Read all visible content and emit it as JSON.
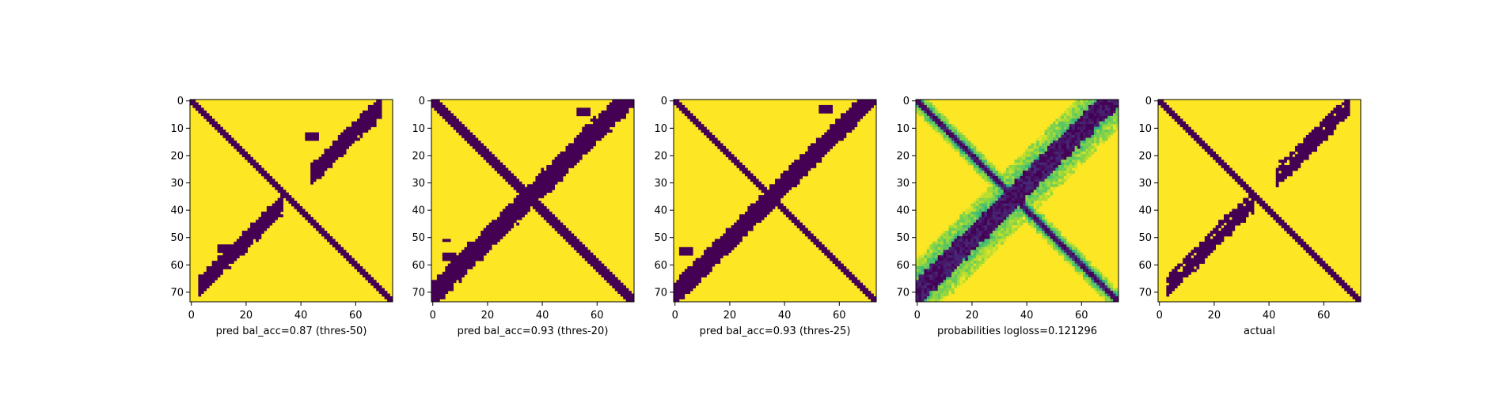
{
  "chart_data": [
    {
      "type": "heatmap",
      "xlabel": "pred bal_acc=0.87 (thres-50)",
      "size": 74,
      "x_ticks": [
        0,
        20,
        40,
        60
      ],
      "y_ticks": [
        0,
        10,
        20,
        30,
        40,
        50,
        60,
        70
      ],
      "colormap": "viridis",
      "matrix_description": "binary contact map; main diagonal band plus anti-parallel band",
      "pattern": {
        "main_width": 1.6,
        "anti": [
          [
            -1,
            1.3
          ],
          [
            -4,
            0.9
          ]
        ],
        "anti_span": [
          0.03,
          0.95
        ],
        "anti_gap": [
          0.46,
          0.6
        ],
        "blobs": [
          [
            44,
            13,
            2
          ],
          [
            65,
            8,
            2
          ],
          [
            12,
            54,
            2
          ]
        ]
      },
      "value_kind": "binary"
    },
    {
      "type": "heatmap",
      "xlabel": "pred bal_acc=0.93 (thres-20)",
      "size": 74,
      "x_ticks": [
        0,
        20,
        40,
        60
      ],
      "y_ticks": [
        0,
        10,
        20,
        30,
        40,
        50,
        60,
        70
      ],
      "colormap": "viridis",
      "pattern": {
        "main_width": 2.2,
        "anti": [
          [
            -1,
            1.7
          ],
          [
            -5,
            1.2
          ]
        ],
        "anti_span": [
          0.0,
          1.0
        ],
        "anti_gap": [
          -1,
          -1
        ],
        "blobs": [
          [
            55,
            4,
            2
          ],
          [
            6,
            57,
            2
          ],
          [
            5,
            51,
            1
          ]
        ]
      },
      "value_kind": "binary"
    },
    {
      "type": "heatmap",
      "xlabel": "pred bal_acc=0.93 (thres-25)",
      "size": 74,
      "x_ticks": [
        0,
        20,
        40,
        60
      ],
      "y_ticks": [
        0,
        10,
        20,
        30,
        40,
        50,
        60,
        70
      ],
      "colormap": "viridis",
      "pattern": {
        "main_width": 1.9,
        "anti": [
          [
            -1,
            1.5
          ],
          [
            -5,
            0.9
          ]
        ],
        "anti_span": [
          0.0,
          1.0
        ],
        "anti_gap": [
          -1,
          -1
        ],
        "blobs": [
          [
            55,
            3,
            2
          ],
          [
            4,
            55,
            2
          ]
        ]
      },
      "value_kind": "binary"
    },
    {
      "type": "heatmap",
      "xlabel": "probabilities logloss=0.121296",
      "size": 74,
      "x_ticks": [
        0,
        20,
        40,
        60
      ],
      "y_ticks": [
        0,
        10,
        20,
        30,
        40,
        50,
        60,
        70
      ],
      "colormap": "viridis",
      "pattern": {
        "main_width": 1.8,
        "anti": [
          [
            -1,
            1.8
          ],
          [
            -5,
            1.4
          ]
        ],
        "anti_span": [
          0.0,
          1.0
        ],
        "anti_gap": [
          -1,
          -1
        ],
        "blobs": []
      },
      "value_kind": "probability",
      "vlim": [
        0,
        1
      ]
    },
    {
      "type": "heatmap",
      "xlabel": "actual",
      "size": 74,
      "x_ticks": [
        0,
        20,
        40,
        60
      ],
      "y_ticks": [
        0,
        10,
        20,
        30,
        40,
        50,
        60,
        70
      ],
      "colormap": "viridis",
      "pattern": {
        "main_width": 1.7,
        "anti": [
          [
            -1,
            1.3
          ],
          [
            -5,
            0.7
          ]
        ],
        "anti_span": [
          0.03,
          0.95
        ],
        "anti_gap": [
          0.47,
          0.58
        ],
        "blobs": [
          [
            56,
            15,
            1
          ],
          [
            15,
            56,
            1
          ]
        ]
      },
      "value_kind": "binary"
    }
  ],
  "colors": {
    "low": "#440154",
    "high": "#fde725",
    "mid": "#21918c",
    "background": "#ffffff",
    "axis": "#000000"
  }
}
